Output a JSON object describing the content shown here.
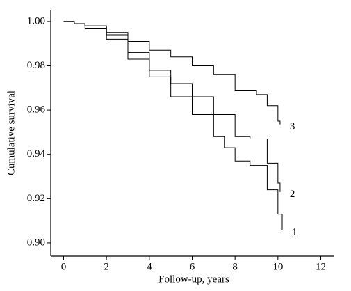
{
  "chart_data": {
    "type": "step",
    "xlabel": "Follow-up, years",
    "ylabel": "Cumulative survival",
    "xlim": [
      -0.6,
      12.6
    ],
    "ylim": [
      0.894,
      1.005
    ],
    "xticks": [
      0,
      2,
      4,
      6,
      8,
      10,
      12
    ],
    "yticks": [
      {
        "value": 1.0,
        "label": "1.00"
      },
      0.98,
      0.96,
      0.94,
      0.92,
      {
        "value": 0.9,
        "label": "0.90"
      }
    ],
    "series": [
      {
        "name": "3",
        "color": "#000000",
        "x": [
          0,
          0.5,
          1,
          2,
          3,
          4,
          5,
          6,
          7,
          8,
          9,
          9.5,
          10,
          10.1
        ],
        "values": [
          1.0,
          0.999,
          0.998,
          0.995,
          0.991,
          0.987,
          0.984,
          0.98,
          0.976,
          0.969,
          0.967,
          0.962,
          0.955,
          0.9535
        ]
      },
      {
        "name": "2",
        "color": "#000000",
        "x": [
          0,
          0.5,
          1,
          2,
          3,
          4,
          5,
          6,
          7,
          8,
          8.7,
          9.5,
          10,
          10.1
        ],
        "values": [
          1.0,
          0.999,
          0.998,
          0.994,
          0.986,
          0.978,
          0.972,
          0.966,
          0.958,
          0.948,
          0.947,
          0.936,
          0.927,
          0.923
        ]
      },
      {
        "name": "1",
        "color": "#000000",
        "x": [
          0,
          0.5,
          1,
          2,
          3,
          4,
          5,
          6,
          7,
          7.5,
          8,
          8.7,
          9.5,
          10,
          10.2
        ],
        "values": [
          1.0,
          0.999,
          0.997,
          0.992,
          0.983,
          0.975,
          0.966,
          0.958,
          0.948,
          0.943,
          0.937,
          0.935,
          0.924,
          0.913,
          0.906
        ]
      }
    ]
  }
}
